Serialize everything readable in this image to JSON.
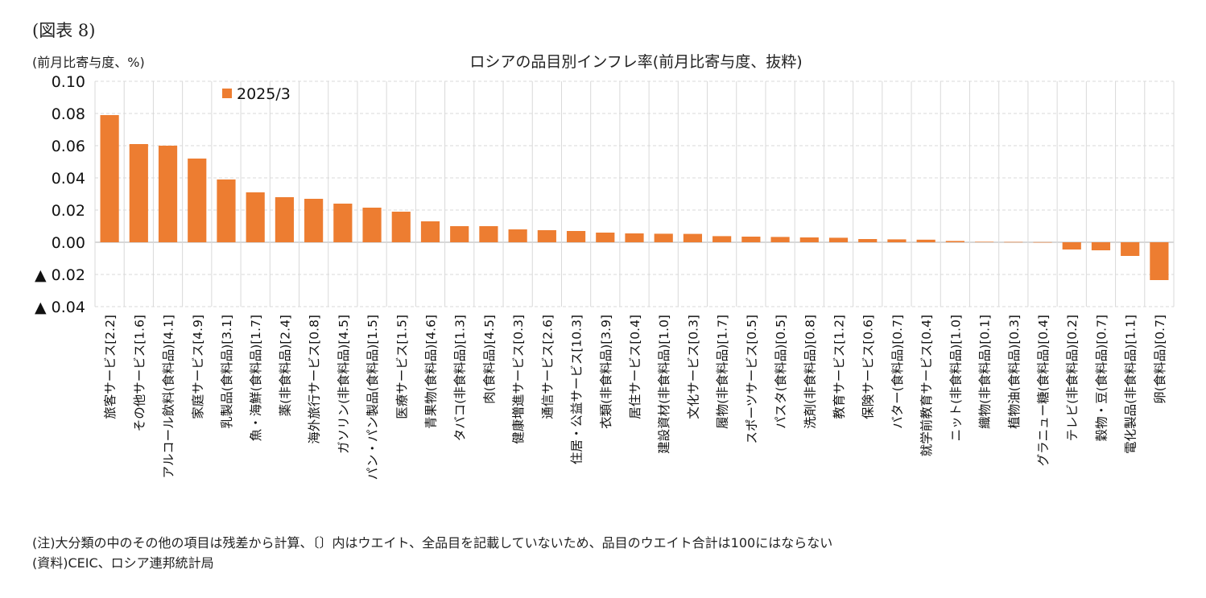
{
  "figure_label": "(図表 8)",
  "unit_label": "(前月比寄与度、%)",
  "notes": {
    "note": "(注)大分類の中のその他の項目は残差から計算、〔〕内はウエイト、全品目を記載していないため、品目のウエイト合計は100にはならない",
    "source": "(資料)CEIC、ロシア連邦統計局"
  },
  "colors": {
    "bar": "#ED7D31",
    "grid": "#d9d9d9",
    "zero_line": "#bfbfbf"
  },
  "chart_data": {
    "type": "bar",
    "title": "ロシアの品目別インフレ率(前月比寄与度、抜粋)",
    "ylabel": "(前月比寄与度、%)",
    "ylim": [
      -0.04,
      0.1
    ],
    "yticks": [
      0.1,
      0.08,
      0.06,
      0.04,
      0.02,
      0.0,
      -0.02,
      -0.04
    ],
    "ytick_labels": [
      "0.10",
      "0.08",
      "0.06",
      "0.04",
      "0.02",
      "0.00",
      "▲ 0.02",
      "▲ 0.04"
    ],
    "grid": true,
    "legend_position": "top-left",
    "series": [
      {
        "name": "2025/3",
        "values": [
          0.079,
          0.061,
          0.06,
          0.052,
          0.039,
          0.031,
          0.028,
          0.027,
          0.024,
          0.0215,
          0.019,
          0.013,
          0.01,
          0.01,
          0.008,
          0.0075,
          0.007,
          0.006,
          0.0055,
          0.0053,
          0.0052,
          0.0038,
          0.0035,
          0.0033,
          0.003,
          0.0028,
          0.002,
          0.0018,
          0.0016,
          0.0008,
          0.0003,
          0.0002,
          0.0001,
          -0.0045,
          -0.005,
          -0.0085,
          -0.0235
        ]
      }
    ],
    "categories": [
      "旅客サービス[2.2]",
      "その他サービス[1.6]",
      "アルコール飲料(食料品)[4.1]",
      "家庭サービス[4.9]",
      "乳製品(食料品)[3.1]",
      "魚・海鮮(食料品)[1.7]",
      "薬(非食料品)[2.4]",
      "海外旅行サービス[0.8]",
      "ガソリン(非食料品)[4.5]",
      "パン・パン製品(食料品)[1.5]",
      "医療サービス[1.5]",
      "青果物(食料品)[4.6]",
      "タバコ(非食料品)[1.3]",
      "肉(食料品)[4.5]",
      "健康増進サービス[0.3]",
      "通信サービス[2.6]",
      "住居・公益サービス[10.3]",
      "衣類(非食料品)[3.9]",
      "居住サービス[0.4]",
      "建設資材(非食料品)[1.0]",
      "文化サービス[0.3]",
      "履物(非食料品)[1.7]",
      "スポーツサービス[0.5]",
      "パスタ(食料品)[0.5]",
      "洗剤(非食料品)[0.8]",
      "教育サービス[1.2]",
      "保険サービス[0.6]",
      "バター(食料品)[0.7]",
      "就学前教育サービス[0.4]",
      "ニット(非食料品)[1.0]",
      "織物(非食料品)[0.1]",
      "植物油(食料品)[0.3]",
      "グラニュー糖(食料品)[0.4]",
      "テレビ(非食料品)[0.2]",
      "穀物・豆(食料品)[0.7]",
      "電化製品(非食料品)[1.1]",
      "卵(食料品)[0.7]"
    ]
  }
}
